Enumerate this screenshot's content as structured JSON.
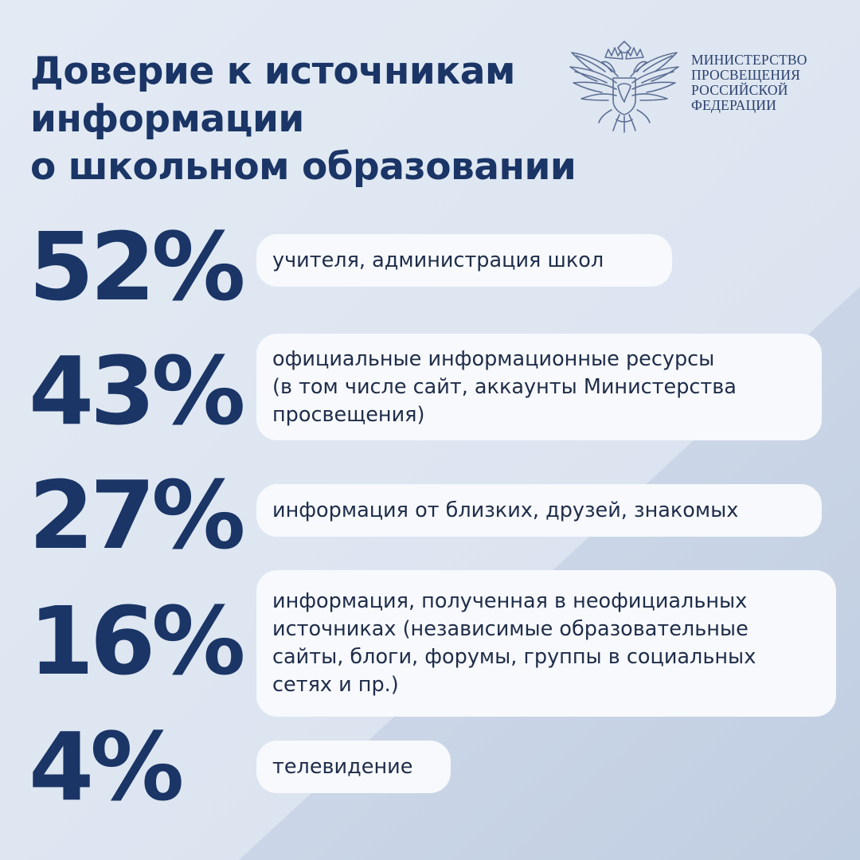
{
  "header": {
    "title_lines": [
      "Доверие к источникам",
      "информации",
      "о школьном образовании"
    ]
  },
  "logo": {
    "ministry_lines": [
      "МИНИСТЕРСТВО",
      "ПРОСВЕЩЕНИЯ",
      "РОССИЙСКОЙ",
      "ФЕДЕРАЦИИ"
    ],
    "icon": "double-headed-eagle-emblem"
  },
  "items": [
    {
      "percent": "52%",
      "description": "учителя, администрация школ"
    },
    {
      "percent": "43%",
      "description": "официальные информационные ресурсы\n(в том числе сайт, аккаунты Министерства\nпросвещения)"
    },
    {
      "percent": "27%",
      "description": "информация от близких, друзей, знакомых"
    },
    {
      "percent": "16%",
      "description": "информация, полученная в неофициальных\nисточниках (независимые образовательные\nсайты, блоги, форумы, группы в социальных\nсетях и пр.)"
    },
    {
      "percent": "4%",
      "description": "телевидение"
    }
  ],
  "colors": {
    "background": "#dde6f2",
    "accent": "#1a3566",
    "pill": "#f7f9fc",
    "text": "#1f2d4a"
  }
}
